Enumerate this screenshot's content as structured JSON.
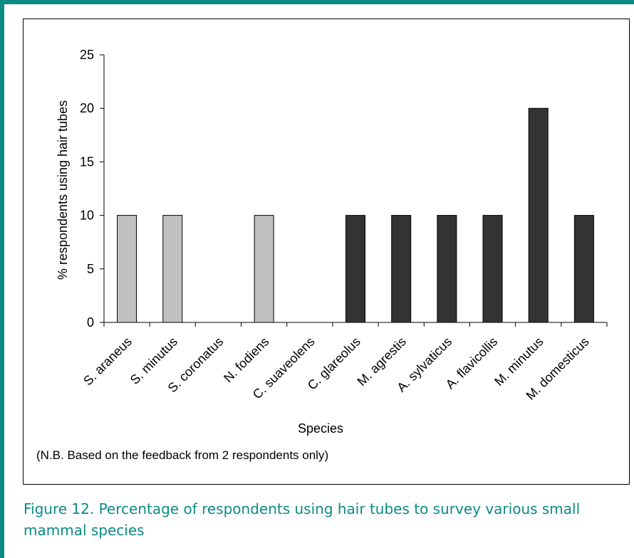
{
  "chart_data": {
    "type": "bar",
    "categories": [
      "S. araneus",
      "S. minutus",
      "S. coronatus",
      "N. fodiens",
      "C. suaveolens",
      "C. glareolus",
      "M. agrestis",
      "A. sylvaticus",
      "A. flavicollis",
      "M. minutus",
      "M. domesticus"
    ],
    "values": [
      10,
      10,
      0,
      10,
      0,
      10,
      10,
      10,
      10,
      20,
      10
    ],
    "bar_colors": [
      "#c0c0c0",
      "#c0c0c0",
      "#c0c0c0",
      "#c0c0c0",
      "#c0c0c0",
      "#333333",
      "#333333",
      "#333333",
      "#333333",
      "#333333",
      "#333333"
    ],
    "xlabel": "Species",
    "ylabel": "% respondents using hair tubes",
    "ylim": [
      0,
      25
    ],
    "yticks": [
      0,
      5,
      10,
      15,
      20,
      25
    ],
    "grid": false,
    "note": "(N.B. Based on the feedback from 2 respondents only)"
  },
  "caption": "Figure 12.  Percentage of respondents using hair tubes to survey various small mammal species",
  "colors": {
    "frame": "#0b8a84",
    "caption_text": "#0b8a84"
  }
}
